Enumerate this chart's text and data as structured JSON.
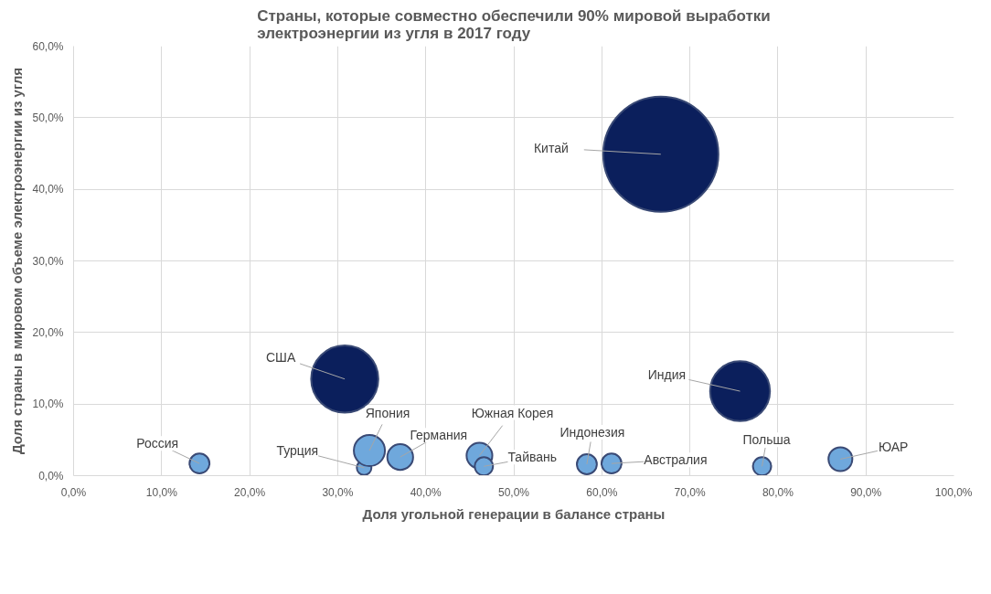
{
  "chart_data": {
    "type": "bubble",
    "title": "Страны, которые совместно обеспечили 90% мировой выработки\nэлектроэнергии из угля в 2017 году",
    "xlabel": "Доля угольной генерации в балансе страны",
    "ylabel": "Доля страны в мировом объеме электроэнергии из угля",
    "x": [
      14.3,
      33.0,
      33.6,
      37.1,
      30.8,
      46.1,
      46.6,
      58.3,
      61.1,
      66.7,
      75.7,
      78.2,
      87.1
    ],
    "values": [
      1.7,
      1.1,
      3.5,
      2.6,
      13.5,
      2.8,
      1.3,
      1.6,
      1.7,
      44.9,
      11.8,
      1.3,
      2.3
    ],
    "sizes": [
      0.03,
      0.016,
      0.073,
      0.05,
      0.34,
      0.05,
      0.025,
      0.03,
      0.03,
      1,
      0.27,
      0.025,
      0.043
    ],
    "colors": [
      "#6fa8dc",
      "#6fa8dc",
      "#6fa8dc",
      "#6fa8dc",
      "#0b1f5c",
      "#6fa8dc",
      "#6fa8dc",
      "#6fa8dc",
      "#6fa8dc",
      "#0b1f5c",
      "#0b1f5c",
      "#6fa8dc",
      "#6fa8dc"
    ],
    "annotations": [
      {
        "text": "Россия",
        "x": 14.3,
        "y": 1.7
      },
      {
        "text": "Турция",
        "x": 33.0,
        "y": 1.1
      },
      {
        "text": "Япония",
        "x": 33.6,
        "y": 3.5
      },
      {
        "text": "Германия",
        "x": 37.1,
        "y": 2.6
      },
      {
        "text": "США",
        "x": 30.8,
        "y": 13.5
      },
      {
        "text": "Южная Корея",
        "x": 46.1,
        "y": 2.8
      },
      {
        "text": "Тайвань",
        "x": 46.6,
        "y": 1.3
      },
      {
        "text": "Индонезия",
        "x": 58.3,
        "y": 1.6
      },
      {
        "text": "Австралия",
        "x": 61.1,
        "y": 1.7
      },
      {
        "text": "Китай",
        "x": 66.7,
        "y": 44.9
      },
      {
        "text": "Индия",
        "x": 75.7,
        "y": 11.8
      },
      {
        "text": "Польша",
        "x": 78.2,
        "y": 1.3
      },
      {
        "text": "ЮАР",
        "x": 87.1,
        "y": 2.3
      }
    ],
    "xlim": [
      0,
      100
    ],
    "ylim": [
      0,
      60
    ],
    "xticks": [
      {
        "value": 0,
        "label": "0,0%"
      },
      {
        "value": 10,
        "label": "10,0%"
      },
      {
        "value": 20,
        "label": "20,0%"
      },
      {
        "value": 30,
        "label": "30,0%"
      },
      {
        "value": 40,
        "label": "40,0%"
      },
      {
        "value": 50,
        "label": "50,0%"
      },
      {
        "value": 60,
        "label": "60,0%"
      },
      {
        "value": 70,
        "label": "70,0%"
      },
      {
        "value": 80,
        "label": "80,0%"
      },
      {
        "value": 90,
        "label": "90,0%"
      },
      {
        "value": 100,
        "label": "100,0%"
      }
    ],
    "yticks": [
      {
        "value": 0,
        "label": "0,0%"
      },
      {
        "value": 10,
        "label": "10,0%"
      },
      {
        "value": 20,
        "label": "20,0%"
      },
      {
        "value": 30,
        "label": "30,0%"
      },
      {
        "value": 40,
        "label": "40,0%"
      },
      {
        "value": 50,
        "label": "50,0%"
      },
      {
        "value": 60,
        "label": "60,0%"
      }
    ],
    "grid": true
  }
}
